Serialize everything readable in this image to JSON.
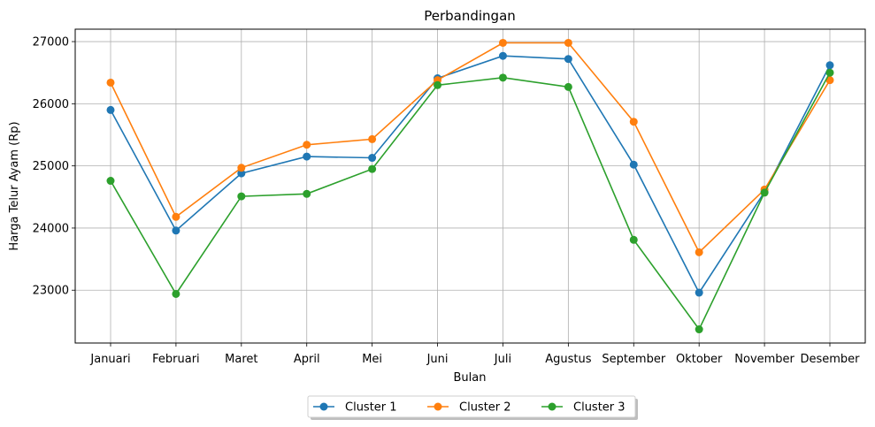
{
  "chart_data": {
    "type": "line",
    "title": "Perbandingan",
    "xlabel": "Bulan",
    "ylabel": "Harga Telur Ayam (Rp)",
    "categories": [
      "Januari",
      "Februari",
      "Maret",
      "April",
      "Mei",
      "Juni",
      "Juli",
      "Agustus",
      "September",
      "Oktober",
      "November",
      "Desember"
    ],
    "ylim": [
      22150,
      27200
    ],
    "yticks": [
      23000,
      24000,
      25000,
      26000,
      27000
    ],
    "grid": true,
    "legend": "bottom-center",
    "series": [
      {
        "name": "Cluster 1",
        "color": "#1f77b4",
        "values": [
          25900,
          23960,
          24880,
          25150,
          25130,
          26410,
          26770,
          26720,
          25020,
          22960,
          24580,
          26620
        ]
      },
      {
        "name": "Cluster 2",
        "color": "#ff7f0e",
        "values": [
          26340,
          24180,
          24970,
          25340,
          25430,
          26380,
          26980,
          26980,
          25710,
          23610,
          24620,
          26380
        ]
      },
      {
        "name": "Cluster 3",
        "color": "#2ca02c",
        "values": [
          24760,
          22940,
          24510,
          24550,
          24950,
          26300,
          26420,
          26270,
          23810,
          22370,
          24570,
          26500
        ]
      }
    ]
  }
}
